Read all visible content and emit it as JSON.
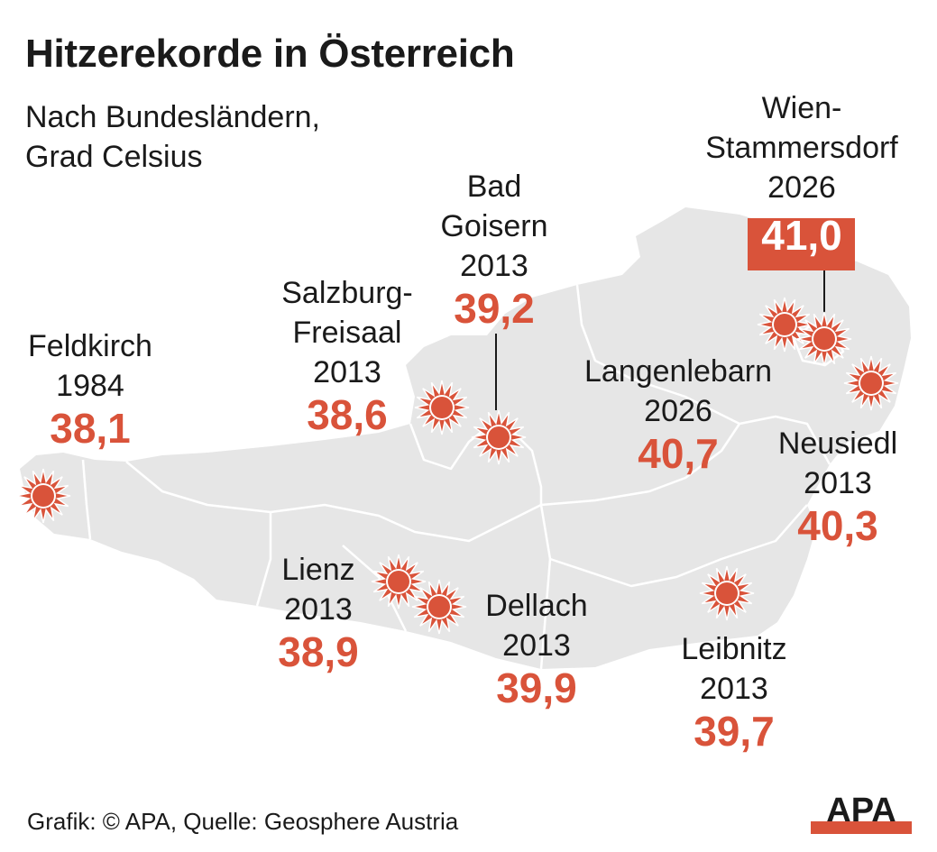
{
  "title": "Hitzerekorde in Österreich",
  "subtitle": [
    "Nach Bundesländern,",
    "Grad Celsius"
  ],
  "colors": {
    "map_fill": "#e6e6e6",
    "border": "#ffffff",
    "accent": "#d9533a",
    "sun": "#d9533a",
    "highlight_box": "#d9533a"
  },
  "locations": [
    {
      "id": "feldkirch",
      "name_lines": [
        "Feldkirch"
      ],
      "year": "1984",
      "value": "38,1",
      "highlight": false,
      "icon": "sun-icon"
    },
    {
      "id": "salzburg-freisaal",
      "name_lines": [
        "Salzburg-",
        "Freisaal"
      ],
      "year": "2013",
      "value": "38,6",
      "highlight": false,
      "icon": "sun-icon"
    },
    {
      "id": "bad-goisern",
      "name_lines": [
        "Bad",
        "Goisern"
      ],
      "year": "2013",
      "value": "39,2",
      "highlight": false,
      "icon": "sun-icon"
    },
    {
      "id": "wien-stammersdorf",
      "name_lines": [
        "Wien-",
        "Stammersdorf"
      ],
      "year": "2026",
      "value": "41,0",
      "highlight": true,
      "icon": "sun-icon"
    },
    {
      "id": "langenlebarn",
      "name_lines": [
        "Langenlebarn"
      ],
      "year": "2026",
      "value": "40,7",
      "highlight": false,
      "icon": "sun-icon"
    },
    {
      "id": "neusiedl",
      "name_lines": [
        "Neusiedl"
      ],
      "year": "2013",
      "value": "40,3",
      "highlight": false,
      "icon": "sun-icon"
    },
    {
      "id": "lienz",
      "name_lines": [
        "Lienz"
      ],
      "year": "2013",
      "value": "38,9",
      "highlight": false,
      "icon": "sun-icon"
    },
    {
      "id": "dellach",
      "name_lines": [
        "Dellach"
      ],
      "year": "2013",
      "value": "39,9",
      "highlight": false,
      "icon": "sun-icon"
    },
    {
      "id": "leibnitz",
      "name_lines": [
        "Leibnitz"
      ],
      "year": "2013",
      "value": "39,7",
      "highlight": false,
      "icon": "sun-icon"
    }
  ],
  "footer": {
    "text": "Grafik: © APA, Quelle: Geosphere Austria"
  },
  "logo": {
    "text": "APA"
  }
}
